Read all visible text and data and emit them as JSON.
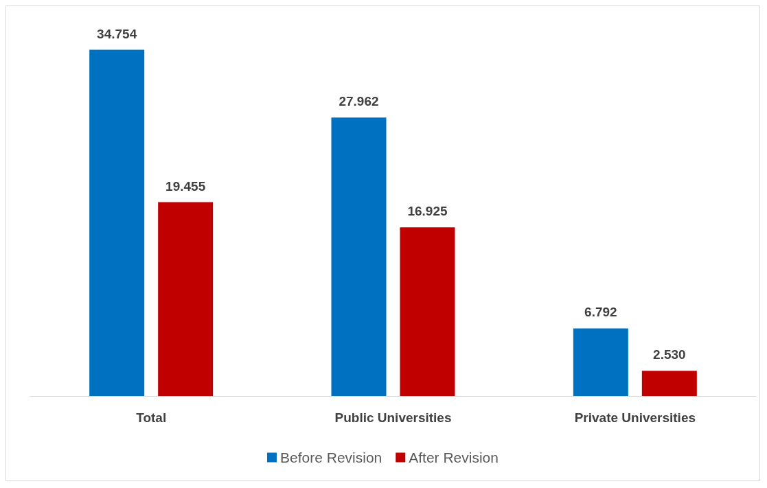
{
  "chart_data": {
    "type": "bar",
    "categories": [
      "Total",
      "Public Universities",
      "Private Universities"
    ],
    "series": [
      {
        "name": "Before Revision",
        "color": "#0070c0",
        "values": [
          34.754,
          27.962,
          6.792
        ],
        "value_labels": [
          "34.754",
          "27.962",
          "6.792"
        ]
      },
      {
        "name": "After Revision",
        "color": "#c00000",
        "values": [
          19.455,
          16.925,
          2.53
        ],
        "value_labels": [
          "19.455",
          "16.925",
          "2.530"
        ]
      }
    ],
    "legend": "bottom",
    "grid": false
  }
}
